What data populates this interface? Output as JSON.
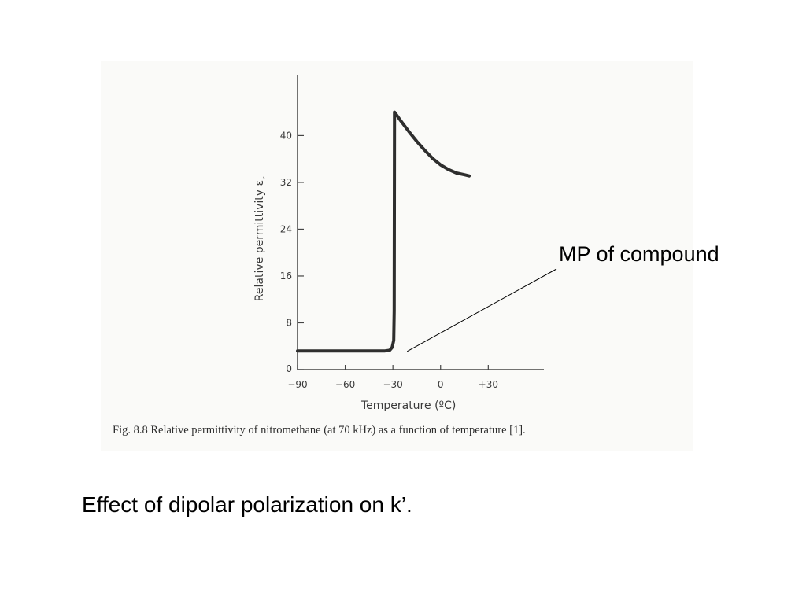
{
  "chart_data": {
    "type": "line",
    "xlabel": "Temperature (ºC)",
    "ylabel": "Relative permittivity ε",
    "ylabel_subscript": "r",
    "x_tick_labels": [
      "−90",
      "−60",
      "−30",
      "0",
      "+30"
    ],
    "x_ticks": [
      -90,
      -60,
      -30,
      0,
      30
    ],
    "y_tick_labels": [
      "0",
      "8",
      "16",
      "24",
      "32",
      "40"
    ],
    "y_ticks": [
      0,
      8,
      16,
      24,
      32,
      40
    ],
    "xlim": [
      -90,
      65
    ],
    "ylim": [
      0,
      50
    ],
    "series": [
      {
        "x": [
          -90,
          -35,
          -32,
          -30.5,
          -29.5,
          -29.2,
          -29,
          -25,
          -20,
          -15,
          -10,
          -5,
          0,
          5,
          10,
          15,
          18
        ],
        "y": [
          3.2,
          3.2,
          3.3,
          3.8,
          5,
          10,
          44,
          42.5,
          40.7,
          39,
          37.5,
          36.1,
          35,
          34.2,
          33.6,
          33.3,
          33.1
        ]
      }
    ],
    "figure_caption": "Fig. 8.8    Relative permittivity of nitromethane (at 70 kHz) as a function of temperature [1].",
    "annotations": [
      {
        "text": "MP of compound",
        "points_to": {
          "x": -28,
          "y": 1.5
        }
      }
    ]
  },
  "slide": {
    "caption": "Effect of dipolar polarization on k’."
  }
}
